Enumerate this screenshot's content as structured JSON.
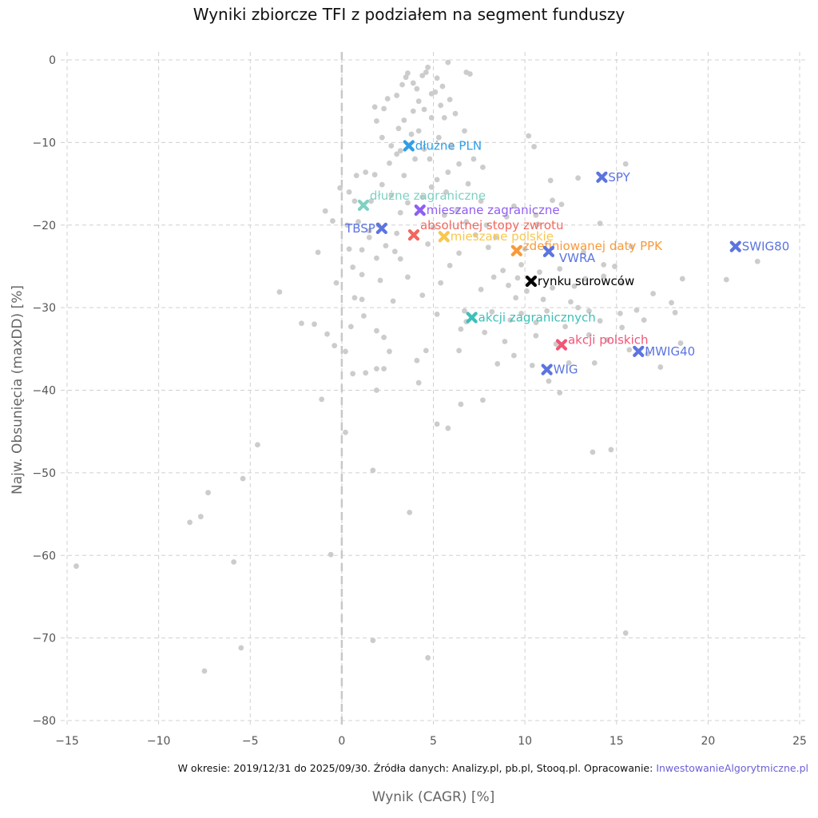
{
  "chart_data": {
    "type": "scatter",
    "title": "Wyniki zbiorcze TFI z podziałem na segment funduszy",
    "xlabel": "Wynik (CAGR) [%]",
    "ylabel": "Najw. Obsunięcia (maxDD) [%]",
    "xlim": [
      -15,
      25
    ],
    "ylim": [
      -80,
      0
    ],
    "xticks": [
      -15,
      -10,
      -5,
      0,
      5,
      10,
      15,
      20,
      25
    ],
    "yticks": [
      0,
      -10,
      -20,
      -30,
      -40,
      -50,
      -60,
      -70,
      -80
    ],
    "grid": true,
    "background_points_color": "#cccccc",
    "background_points": [
      [
        -14.5,
        -61.3
      ],
      [
        -8.3,
        -56
      ],
      [
        -7.7,
        -55.3
      ],
      [
        -7.3,
        -52.4
      ],
      [
        -7.5,
        -74
      ],
      [
        -5.9,
        -60.8
      ],
      [
        -5.5,
        -71.2
      ],
      [
        -5.4,
        -50.7
      ],
      [
        -4.6,
        -46.6
      ],
      [
        -3.4,
        -28.1
      ],
      [
        -2.2,
        -31.9
      ],
      [
        -1.5,
        -32
      ],
      [
        -1.3,
        -23.3
      ],
      [
        -1.1,
        -41.1
      ],
      [
        -0.9,
        -18.3
      ],
      [
        -0.8,
        -33.2
      ],
      [
        -0.6,
        -59.9
      ],
      [
        -0.5,
        -19.5
      ],
      [
        -0.4,
        -34.6
      ],
      [
        -0.3,
        -27
      ],
      [
        0.2,
        -35.3
      ],
      [
        0.2,
        -45.1
      ],
      [
        0.4,
        -16
      ],
      [
        0.4,
        -22.9
      ],
      [
        0.5,
        -32.3
      ],
      [
        0.6,
        -25.1
      ],
      [
        0.6,
        -38
      ],
      [
        0.7,
        -28.8
      ],
      [
        1.1,
        -29
      ],
      [
        1.1,
        -23
      ],
      [
        1.1,
        -26
      ],
      [
        1.3,
        -37.9
      ],
      [
        1.3,
        -13.6
      ],
      [
        1.5,
        -20.7
      ],
      [
        1.7,
        -49.7
      ],
      [
        1.7,
        -70.3
      ],
      [
        1.9,
        -40
      ],
      [
        1.9,
        -32.8
      ],
      [
        1.9,
        -37.4
      ],
      [
        2.3,
        -37.4
      ],
      [
        2.3,
        -33.6
      ],
      [
        2.6,
        -35.3
      ],
      [
        2.8,
        -29.2
      ],
      [
        3.7,
        -54.8
      ],
      [
        4.2,
        -39.1
      ],
      [
        4.1,
        -36.4
      ],
      [
        4.6,
        -35.2
      ],
      [
        4.7,
        -72.4
      ],
      [
        5.2,
        -44.1
      ],
      [
        5.8,
        -44.6
      ],
      [
        6.4,
        -35.2
      ],
      [
        6.5,
        -41.7
      ],
      [
        7.7,
        -41.2
      ],
      [
        10.4,
        -37
      ],
      [
        11.3,
        -38.9
      ],
      [
        11.9,
        -40.3
      ],
      [
        12.4,
        -36.7
      ],
      [
        12.2,
        -32.3
      ],
      [
        13.8,
        -36.7
      ],
      [
        13.7,
        -47.5
      ],
      [
        14.7,
        -47.2
      ],
      [
        15.5,
        -69.4
      ],
      [
        15.3,
        -32.4
      ],
      [
        16.7,
        -35.6
      ],
      [
        17.4,
        -37.2
      ],
      [
        18.6,
        -26.5
      ],
      [
        18.5,
        -34.3
      ],
      [
        18.2,
        -30.6
      ],
      [
        18,
        -29.4
      ],
      [
        17,
        -28.3
      ],
      [
        21,
        -26.6
      ],
      [
        22.7,
        -24.4
      ],
      [
        15.8,
        -22.6
      ],
      [
        15.5,
        -12.6
      ],
      [
        14.1,
        -19.8
      ],
      [
        12.9,
        -14.3
      ],
      [
        10.5,
        -10.5
      ],
      [
        10.2,
        -9.2
      ],
      [
        11.4,
        -14.6
      ],
      [
        11.5,
        -17
      ],
      [
        12,
        -17.5
      ],
      [
        11.9,
        -25.3
      ],
      [
        13.2,
        -23.3
      ],
      [
        14.3,
        -24.8
      ],
      [
        14.9,
        -25
      ],
      [
        15.2,
        -30.7
      ],
      [
        14.1,
        -31.6
      ],
      [
        13.5,
        -30.4
      ],
      [
        12.7,
        -27.4
      ],
      [
        11,
        -29
      ],
      [
        9.5,
        -28.8
      ],
      [
        9.2,
        -31.5
      ],
      [
        8.9,
        -34.1
      ],
      [
        9.4,
        -35.8
      ],
      [
        8.5,
        -36.8
      ],
      [
        6.7,
        -30.4
      ],
      [
        6.5,
        -32.6
      ],
      [
        6.8,
        -31.7
      ],
      [
        7.6,
        -27.8
      ],
      [
        8.3,
        -26.3
      ],
      [
        8.8,
        -25.5
      ],
      [
        9.1,
        -27.3
      ],
      [
        9.8,
        -24.8
      ],
      [
        9.6,
        -26.4
      ],
      [
        10,
        -22.9
      ],
      [
        10.8,
        -25.7
      ],
      [
        11.5,
        -27.6
      ],
      [
        8,
        -22.7
      ],
      [
        7.3,
        -21.2
      ],
      [
        6.8,
        -19.6
      ],
      [
        6.4,
        -23.4
      ],
      [
        5.9,
        -24.9
      ],
      [
        5.4,
        -27
      ],
      [
        5.2,
        -30.8
      ],
      [
        4.4,
        -28.5
      ],
      [
        3.6,
        -26.3
      ],
      [
        3.2,
        -24.1
      ],
      [
        2.9,
        -23.2
      ],
      [
        2.4,
        -22.5
      ],
      [
        2.1,
        -26.7
      ],
      [
        1.9,
        -24
      ],
      [
        1.5,
        -21.5
      ],
      [
        4.7,
        -22.3
      ],
      [
        5,
        -20.3
      ],
      [
        5.6,
        -18.8
      ],
      [
        6.3,
        -18.2
      ],
      [
        7.6,
        -17.1
      ],
      [
        7.7,
        -13
      ],
      [
        7.2,
        -12
      ],
      [
        6.4,
        -12.6
      ],
      [
        5.8,
        -13.6
      ],
      [
        5.2,
        -14.5
      ],
      [
        4.9,
        -15.4
      ],
      [
        4.4,
        -16.6
      ],
      [
        3.6,
        -17.3
      ],
      [
        3.2,
        -18.5
      ],
      [
        2.7,
        -16.4
      ],
      [
        2.2,
        -15.1
      ],
      [
        1.8,
        -13.9
      ],
      [
        1.6,
        -17.1
      ],
      [
        0.9,
        -19.6
      ],
      [
        0.7,
        -17.1
      ],
      [
        3,
        -11.4
      ],
      [
        2.7,
        -10.4
      ],
      [
        2.2,
        -9.4
      ],
      [
        1.9,
        -7.4
      ],
      [
        2.3,
        -5.9
      ],
      [
        1.8,
        -5.7
      ],
      [
        2.5,
        -4.7
      ],
      [
        3,
        -4.3
      ],
      [
        3.3,
        -3
      ],
      [
        3.5,
        -2.1
      ],
      [
        3.6,
        -1.6
      ],
      [
        3.9,
        -2.8
      ],
      [
        4.1,
        -3.5
      ],
      [
        4.4,
        -1.9
      ],
      [
        4.6,
        -1.5
      ],
      [
        4.7,
        -0.9
      ],
      [
        5.2,
        -2.2
      ],
      [
        5.5,
        -3.2
      ],
      [
        4.9,
        -4.1
      ],
      [
        4.2,
        -5
      ],
      [
        3.9,
        -6.2
      ],
      [
        3.4,
        -7.3
      ],
      [
        3.1,
        -8.3
      ],
      [
        4.2,
        -8.6
      ],
      [
        4.9,
        -7
      ],
      [
        5.4,
        -5.5
      ],
      [
        5.6,
        -7
      ],
      [
        6,
        -10.5
      ],
      [
        6.7,
        -8.6
      ],
      [
        7,
        -1.7
      ],
      [
        6.8,
        -1.5
      ],
      [
        5.8,
        -0.3
      ],
      [
        5.1,
        -3.9
      ],
      [
        4.5,
        -6
      ],
      [
        4,
        -12
      ],
      [
        4.8,
        -12
      ],
      [
        5.7,
        -16
      ],
      [
        6.9,
        -15
      ],
      [
        7.9,
        -20
      ],
      [
        8.4,
        -21.5
      ],
      [
        9,
        -19
      ],
      [
        9.4,
        -17.7
      ],
      [
        10.7,
        -19.9
      ],
      [
        10.6,
        -18.8
      ],
      [
        10.1,
        -28
      ],
      [
        11.2,
        -30.4
      ],
      [
        10.6,
        -33.4
      ],
      [
        11.7,
        -34.4
      ],
      [
        12.9,
        -30
      ],
      [
        13.5,
        -33.3
      ],
      [
        14.5,
        -33.9
      ],
      [
        15.7,
        -35.1
      ],
      [
        16.1,
        -30.3
      ],
      [
        16.5,
        -31.5
      ],
      [
        15.3,
        -27
      ],
      [
        14.3,
        -26.2
      ],
      [
        13.3,
        -26.5
      ],
      [
        12.5,
        -29.3
      ],
      [
        8.2,
        -30.5
      ],
      [
        7.8,
        -33
      ],
      [
        9.8,
        -30.7
      ],
      [
        10.6,
        -31.8
      ],
      [
        1.2,
        -31
      ],
      [
        0.3,
        -20
      ],
      [
        -0.1,
        -15.5
      ],
      [
        0.8,
        -14
      ],
      [
        2,
        -20
      ],
      [
        3,
        -21
      ],
      [
        3.4,
        -14
      ],
      [
        2.6,
        -12.5
      ],
      [
        3.2,
        -11
      ],
      [
        3.8,
        -9
      ],
      [
        4.5,
        -10.8
      ],
      [
        5.3,
        -9.4
      ],
      [
        6.2,
        -6.5
      ],
      [
        5.9,
        -4.8
      ]
    ],
    "series": [
      {
        "name": "dłużne PLN",
        "x": 3.66,
        "y": -10.4,
        "color": "#2f9ee6",
        "label_pos": "right"
      },
      {
        "name": "SPY",
        "x": 14.2,
        "y": -14.2,
        "color": "#5b74e0",
        "label_pos": "right"
      },
      {
        "name": "dłużne zagraniczne",
        "x": 1.18,
        "y": -17.6,
        "color": "#7fd1c3",
        "label_pos": "above"
      },
      {
        "name": "mieszane zagraniczne",
        "x": 4.27,
        "y": -18.2,
        "color": "#8f5ef2",
        "label_pos": "right"
      },
      {
        "name": "TBSP",
        "x": 2.18,
        "y": -20.4,
        "color": "#5b74e0",
        "label_pos": "left"
      },
      {
        "name": "absolutnej stopy zwrotu",
        "x": 3.93,
        "y": -21.2,
        "color": "#f2685e",
        "label_pos": "above"
      },
      {
        "name": "mieszane polskie",
        "x": 5.58,
        "y": -21.4,
        "color": "#f8c74e",
        "label_pos": "right"
      },
      {
        "name": "zdefiniowanej daty PPK",
        "x": 9.55,
        "y": -23.1,
        "color": "#f89a3a",
        "label_pos": "right-up"
      },
      {
        "name": "VWRA",
        "x": 11.3,
        "y": -23.2,
        "color": "#5b74e0",
        "label_pos": "right-down"
      },
      {
        "name": "SWIG80",
        "x": 21.5,
        "y": -22.6,
        "color": "#5b74e0",
        "label_pos": "right"
      },
      {
        "name": "rynku surowców",
        "x": 10.34,
        "y": -26.8,
        "color": "#000000",
        "label_pos": "right"
      },
      {
        "name": "akcji zagranicznych",
        "x": 7.1,
        "y": -31.2,
        "color": "#3dbfb8",
        "label_pos": "right"
      },
      {
        "name": "akcji polskich",
        "x": 12.0,
        "y": -34.5,
        "color": "#f25577",
        "label_pos": "right-up"
      },
      {
        "name": "MWIG40",
        "x": 16.2,
        "y": -35.3,
        "color": "#5b74e0",
        "label_pos": "right"
      },
      {
        "name": "WIG",
        "x": 11.2,
        "y": -37.5,
        "color": "#5b74e0",
        "label_pos": "right"
      }
    ]
  },
  "footer": {
    "text": "W okresie: 2019/12/31 do 2025/09/30. Źródła danych: Analizy.pl, pb.pl, Stooq.pl. Opracowanie: ",
    "link": "InwestowanieAlgorytmiczne.pl"
  }
}
